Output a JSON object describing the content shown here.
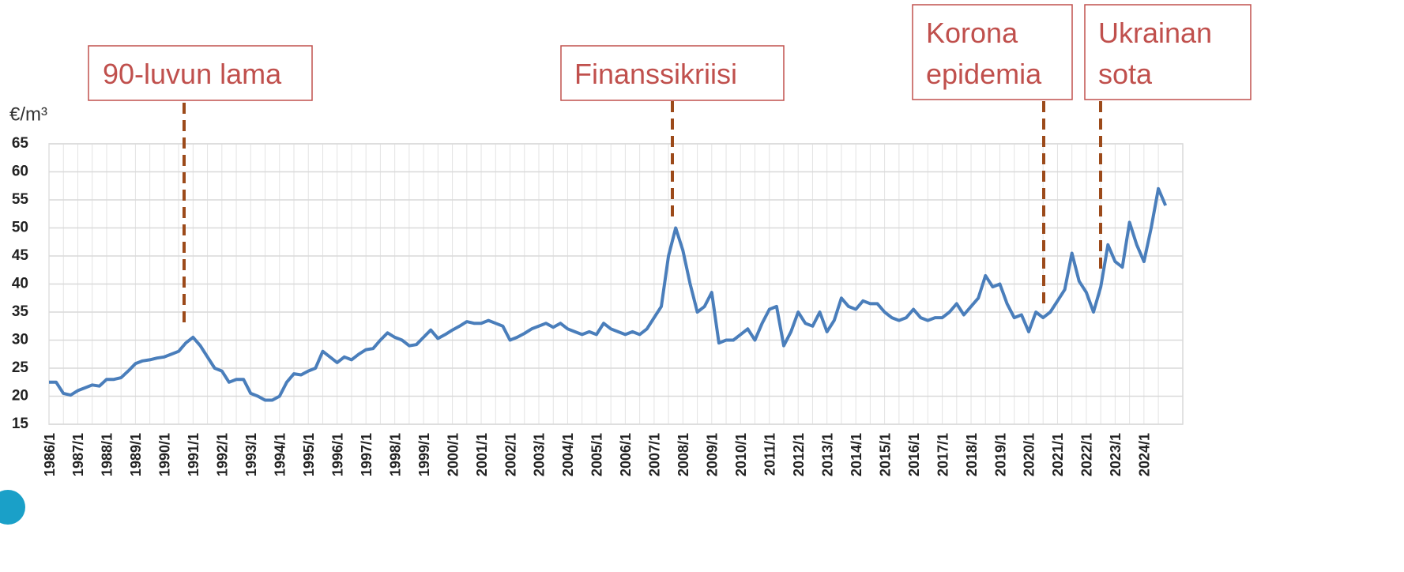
{
  "chart_data": {
    "type": "line",
    "y_label": "€/m³",
    "categories": [
      "1986/1",
      null,
      null,
      null,
      "1987/1",
      null,
      null,
      null,
      "1988/1",
      null,
      null,
      null,
      "1989/1",
      null,
      null,
      null,
      "1990/1",
      null,
      null,
      null,
      "1991/1",
      null,
      null,
      null,
      "1992/1",
      null,
      null,
      null,
      "1993/1",
      null,
      null,
      null,
      "1994/1",
      null,
      null,
      null,
      "1995/1",
      null,
      null,
      null,
      "1996/1",
      null,
      null,
      null,
      "1997/1",
      null,
      null,
      null,
      "1998/1",
      null,
      null,
      null,
      "1999/1",
      null,
      null,
      null,
      "2000/1",
      null,
      null,
      null,
      "2001/1",
      null,
      null,
      null,
      "2002/1",
      null,
      null,
      null,
      "2003/1",
      null,
      null,
      null,
      "2004/1",
      null,
      null,
      null,
      "2005/1",
      null,
      null,
      null,
      "2006/1",
      null,
      null,
      null,
      "2007/1",
      null,
      null,
      null,
      "2008/1",
      null,
      null,
      null,
      "2009/1",
      null,
      null,
      null,
      "2010/1",
      null,
      null,
      null,
      "2011/1",
      null,
      null,
      null,
      "2012/1",
      null,
      null,
      null,
      "2013/1",
      null,
      null,
      null,
      "2014/1",
      null,
      null,
      null,
      "2015/1",
      null,
      null,
      null,
      "2016/1",
      null,
      null,
      null,
      "2017/1",
      null,
      null,
      null,
      "2018/1",
      null,
      null,
      null,
      "2019/1",
      null,
      null,
      null,
      "2020/1",
      null,
      null,
      null,
      "2021/1",
      null,
      null,
      null,
      "2022/1",
      null,
      null,
      null,
      "2023/1",
      null,
      null,
      null,
      "2024/1",
      null,
      null,
      null
    ],
    "series": [
      {
        "color": "#4a7ebb",
        "values": [
          22.5,
          22.5,
          20.5,
          20.2,
          21,
          21.5,
          22,
          21.8,
          23,
          23,
          23.3,
          24.5,
          25.8,
          26.3,
          26.5,
          26.8,
          27,
          27.5,
          28,
          29.5,
          30.5,
          29,
          27,
          25,
          24.5,
          22.5,
          23,
          23,
          20.5,
          20,
          19.3,
          19.3,
          20,
          22.5,
          24,
          23.8,
          24.5,
          25,
          28,
          27,
          26,
          27,
          26.5,
          27.5,
          28.3,
          28.5,
          30,
          31.3,
          30.5,
          30,
          29,
          29.2,
          30.5,
          31.8,
          30.3,
          31,
          31.8,
          32.5,
          33.3,
          33,
          33,
          33.5,
          33,
          32.5,
          30,
          30.5,
          31.2,
          32,
          32.5,
          33,
          32.3,
          33,
          32,
          31.5,
          31,
          31.5,
          31,
          33,
          32,
          31.5,
          31,
          31.5,
          31,
          32,
          34,
          36,
          45,
          50,
          46,
          40,
          35,
          36,
          38.5,
          29.5,
          30,
          30,
          31,
          32,
          30,
          33,
          35.5,
          36,
          29,
          31.5,
          35,
          33,
          32.5,
          35,
          31.5,
          33.5,
          37.5,
          36,
          35.5,
          37,
          36.5,
          36.5,
          35,
          34,
          33.5,
          34,
          35.5,
          34,
          33.5,
          34,
          34,
          35,
          36.5,
          34.5,
          36,
          37.5,
          41.5,
          39.5,
          40,
          36.5,
          34,
          34.5,
          31.5,
          35,
          34,
          35,
          37,
          39,
          45.5,
          40.5,
          38.5,
          35,
          39.5,
          47,
          44,
          43,
          51,
          47,
          44,
          50,
          57,
          54
        ]
      }
    ],
    "ylim": [
      15,
      65
    ],
    "yticks": [
      15,
      20,
      25,
      30,
      35,
      40,
      45,
      50,
      55,
      60,
      65
    ],
    "grid": true,
    "annotations": [
      {
        "lines": [
          "90-luvun lama"
        ]
      },
      {
        "lines": [
          "Finanssikriisi"
        ]
      },
      {
        "lines": [
          "Korona",
          "epidemia"
        ]
      },
      {
        "lines": [
          "Ukrainan",
          "sota"
        ]
      }
    ]
  }
}
